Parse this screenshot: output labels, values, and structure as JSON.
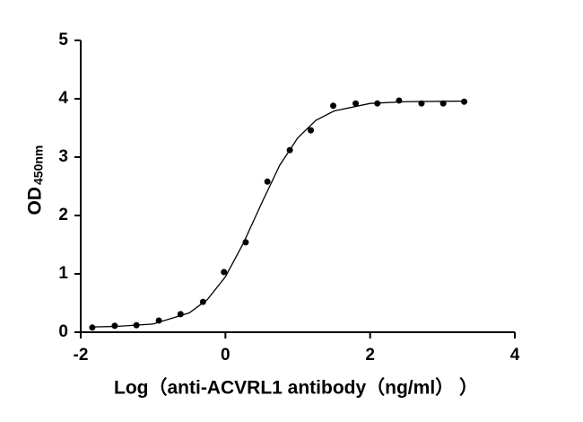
{
  "chart_data": {
    "type": "scatter",
    "x_label": "Log（anti-ACVRL1 antibody（ng/ml）  ）",
    "y_label": "OD",
    "y_label_sub": "450nm",
    "xlim": [
      -2,
      4
    ],
    "xticks": [
      -2,
      0,
      2,
      4
    ],
    "ylim": [
      0,
      5
    ],
    "yticks": [
      0,
      1,
      2,
      3,
      4,
      5
    ],
    "color": "#000000",
    "x": [
      -1.84,
      -1.53,
      -1.23,
      -0.92,
      -0.62,
      -0.31,
      -0.02,
      0.28,
      0.58,
      0.89,
      1.18,
      1.49,
      1.8,
      2.1,
      2.4,
      2.71,
      3.01,
      3.3
    ],
    "values": [
      0.08,
      0.11,
      0.12,
      0.2,
      0.31,
      0.52,
      1.03,
      1.54,
      2.58,
      3.12,
      3.46,
      3.88,
      3.92,
      3.92,
      3.97,
      3.92,
      3.92,
      3.95
    ],
    "fit": {
      "x": [
        -1.84,
        -1.5,
        -1.0,
        -0.5,
        -0.25,
        0,
        0.25,
        0.5,
        0.75,
        1.0,
        1.25,
        1.5,
        2.0,
        2.5,
        3.3
      ],
      "values": [
        0.09,
        0.1,
        0.14,
        0.33,
        0.56,
        0.95,
        1.53,
        2.21,
        2.86,
        3.33,
        3.63,
        3.79,
        3.92,
        3.95,
        3.96
      ]
    }
  }
}
